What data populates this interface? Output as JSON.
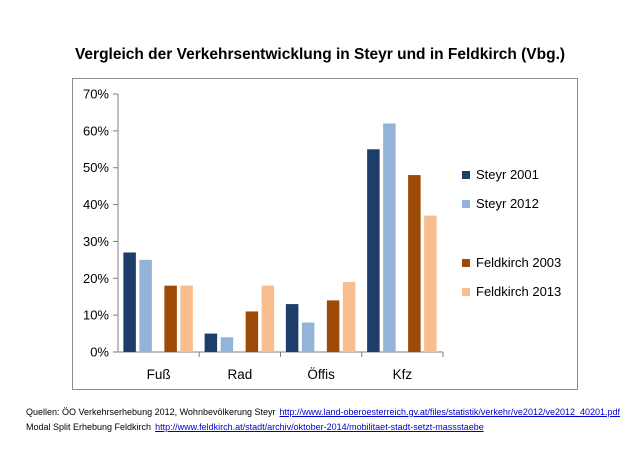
{
  "chart_data": {
    "type": "bar",
    "title": "Vergleich der Verkehrsentwicklung in Steyr und in Feldkirch (Vbg.)",
    "categories": [
      "Fuß",
      "Rad",
      "Öffis",
      "Kfz"
    ],
    "series": [
      {
        "name": "Steyr 2001",
        "color": "#1f3d6b",
        "values": [
          27,
          5,
          13,
          55
        ]
      },
      {
        "name": "Steyr 2012",
        "color": "#93b3d9",
        "values": [
          25,
          4,
          8,
          62
        ]
      },
      {
        "name": "Feldkirch 2003",
        "color": "#9c4a06",
        "values": [
          18,
          11,
          14,
          48
        ]
      },
      {
        "name": "Feldkirch 2013",
        "color": "#f9be8f",
        "values": [
          18,
          18,
          19,
          37
        ]
      }
    ],
    "ylim": [
      0,
      70
    ],
    "y_ticks": [
      "0%",
      "10%",
      "20%",
      "30%",
      "40%",
      "50%",
      "60%",
      "70%"
    ],
    "grid": false,
    "legend_position": "right"
  },
  "sources": {
    "line1_text": "Quellen: ÖO Verkehrserhebung 2012, Wohnbevölkerung Steyr",
    "line1_link": "http://www.land-oberoesterreich.gv.at/files/statistik/verkehr/ve2012/ve2012_40201.pdf",
    "line2_text": "Modal Split Erhebung Feldkirch",
    "line2_link": "http://www.feldkirch.at/stadt/archiv/oktober-2014/mobilitaet-stadt-setzt-massstaebe"
  }
}
